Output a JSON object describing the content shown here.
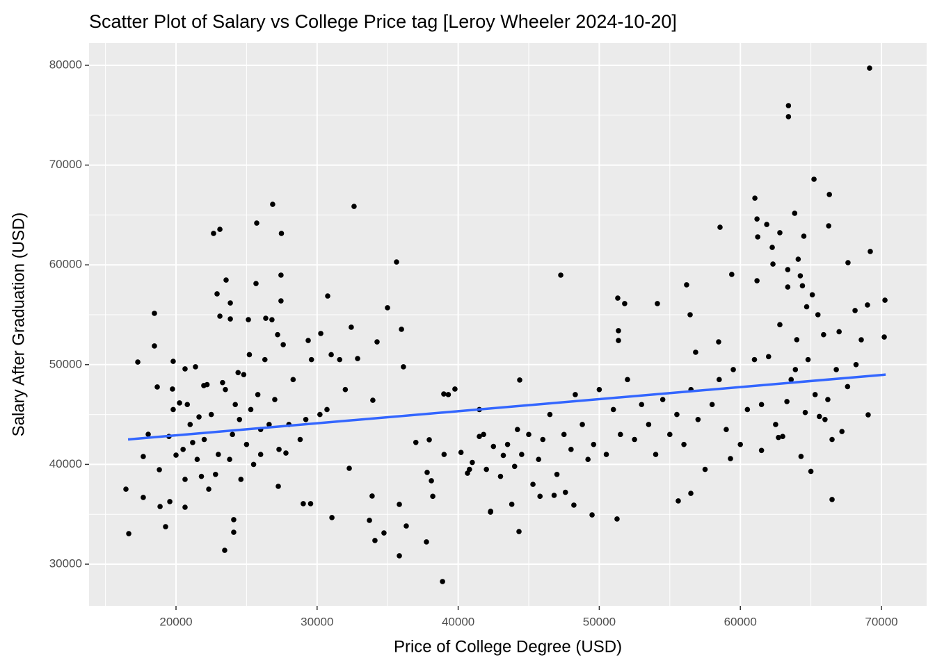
{
  "chart_data": {
    "type": "scatter",
    "title": "Scatter Plot of Salary vs College Price tag [Leroy Wheeler 2024-10-20]",
    "x_label": "Price of College Degree (USD)",
    "y_label": "Salary After Graduation (USD)",
    "xlim": [
      13836,
      73205
    ],
    "ylim": [
      25822,
      82228
    ],
    "xticks": [
      20000,
      30000,
      40000,
      50000,
      60000,
      70000
    ],
    "yticks": [
      30000,
      40000,
      50000,
      60000,
      70000,
      80000
    ],
    "x_minor_grid": [
      15000,
      25000,
      35000,
      45000,
      55000,
      65000
    ],
    "y_minor_grid": [
      35000,
      45000,
      55000,
      65000,
      75000
    ],
    "grid": true,
    "color": "#000000",
    "x": [
      16450,
      16650,
      17290,
      17680,
      17680,
      18470,
      18470,
      18030,
      18670,
      18820,
      18870,
      19260,
      19560,
      19750,
      19800,
      20000,
      20250,
      20640,
      20640,
      20640,
      21180,
      21380,
      21630,
      21970,
      22320,
      22660,
      23110,
      22910,
      23110,
      23450,
      23550,
      23850,
      23850,
      24090,
      24090,
      25720,
      25670,
      25130,
      26360,
      26850,
      27470,
      27440,
      27440,
      27250,
      27790,
      29020,
      29540,
      29370,
      30260,
      30750,
      31050,
      32620,
      32280,
      32420,
      32870,
      33950,
      33900,
      33710,
      34100,
      34250,
      34740,
      34990,
      35630,
      35830,
      35830,
      35980,
      36120,
      36320,
      37750,
      37950,
      38100,
      38890,
      38980,
      39770,
      40660,
      44310,
      42290,
      44360,
      47270,
      48200,
      49490,
      51260,
      51310,
      51800,
      51360,
      51360,
      54120,
      55600,
      56190,
      56440,
      56490,
      56830,
      58560,
      58460,
      59390,
      59300,
      61030,
      61180,
      61230,
      61180,
      61870,
      62260,
      62310,
      62800,
      63360,
      63360,
      63410,
      63410,
      63850,
      64100,
      64250,
      64500,
      65220,
      66260,
      66310,
      66500,
      69160,
      69210,
      69010,
      69060,
      70250,
      70200,
      68130,
      67630,
      68570,
      21000,
      21500,
      22000,
      22500,
      23000,
      23500,
      24000,
      24200,
      24500,
      24800,
      25000,
      25300,
      25500,
      25800,
      26000,
      26300,
      26600,
      27000,
      27300,
      27600,
      28000,
      28300,
      28800,
      29200,
      29600,
      30200,
      30700,
      31000,
      31600,
      32000,
      22800,
      23800,
      24600,
      26000,
      20500,
      19500,
      21800,
      23300,
      24400,
      25200,
      26800,
      27200,
      22200,
      20800,
      19800,
      37000,
      37800,
      38200,
      39000,
      40200,
      41000,
      41500,
      42000,
      42500,
      43000,
      43500,
      44000,
      44500,
      45000,
      45300,
      45700,
      46000,
      46500,
      47000,
      47500,
      48000,
      48300,
      48800,
      49200,
      49600,
      50000,
      50500,
      51000,
      51500,
      52000,
      52500,
      53000,
      53500,
      54000,
      54500,
      55000,
      55500,
      56000,
      56500,
      57000,
      57500,
      58000,
      58500,
      59000,
      59500,
      60000,
      60500,
      41500,
      42300,
      43800,
      45800,
      46800,
      47600,
      44200,
      40800,
      39300,
      41800,
      43200,
      61000,
      61500,
      62000,
      62500,
      63000,
      63300,
      63600,
      64000,
      64300,
      64600,
      64800,
      65000,
      65300,
      65600,
      65900,
      66200,
      66500,
      66800,
      67000,
      67200,
      67600,
      68200,
      64700,
      65500,
      62800,
      63900,
      66000,
      61500,
      62700,
      64400,
      65100
    ],
    "values": [
      37520,
      33060,
      50260,
      40790,
      36690,
      55140,
      51870,
      43020,
      47760,
      39470,
      35780,
      33760,
      36270,
      47550,
      50330,
      40930,
      46160,
      49570,
      38500,
      35710,
      42190,
      49780,
      44760,
      47900,
      37520,
      63150,
      63560,
      57090,
      54860,
      31390,
      58480,
      56180,
      54580,
      34460,
      33200,
      64190,
      58130,
      54510,
      54650,
      66070,
      63150,
      58970,
      56390,
      37800,
      41140,
      36060,
      36060,
      52420,
      53120,
      56880,
      34670,
      65860,
      39610,
      53750,
      50610,
      46430,
      36830,
      34390,
      32370,
      52280,
      33130,
      55700,
      60290,
      35990,
      30840,
      53540,
      49780,
      33830,
      32230,
      42470,
      38360,
      28260,
      47060,
      47550,
      39120,
      33270,
      35220,
      48460,
      58970,
      35920,
      34940,
      34530,
      56670,
      56120,
      53400,
      52420,
      56120,
      36340,
      58000,
      55000,
      37100,
      51240,
      63770,
      52280,
      59040,
      40580,
      66690,
      64600,
      62800,
      58410,
      64050,
      61750,
      60080,
      63220,
      59520,
      57780,
      75960,
      74850,
      65170,
      60570,
      58900,
      62870,
      68580,
      63910,
      67050,
      36480,
      79720,
      61340,
      55980,
      44970,
      56460,
      52770,
      55420,
      60220,
      52490,
      44000,
      40500,
      42500,
      45000,
      41000,
      47500,
      43000,
      46000,
      44500,
      49000,
      42000,
      45500,
      40000,
      47000,
      43500,
      50500,
      44000,
      46500,
      41500,
      52000,
      44000,
      48500,
      42500,
      44500,
      50500,
      45000,
      45500,
      51000,
      50500,
      47500,
      39000,
      40500,
      38500,
      41000,
      41500,
      42800,
      38800,
      48200,
      49200,
      51000,
      54500,
      53000,
      48000,
      46000,
      45500,
      42200,
      39200,
      36800,
      41000,
      41200,
      40200,
      42800,
      39500,
      41800,
      38800,
      42000,
      39800,
      41000,
      43000,
      38000,
      40500,
      42500,
      45000,
      39000,
      43000,
      41500,
      47000,
      44000,
      40500,
      42000,
      47500,
      41000,
      45500,
      43000,
      48500,
      42500,
      46000,
      44000,
      41000,
      46500,
      43000,
      45000,
      42000,
      47500,
      44500,
      39500,
      46000,
      48500,
      43500,
      49500,
      42000,
      45500,
      45500,
      35300,
      36000,
      36800,
      36900,
      37200,
      43500,
      39500,
      47000,
      43000,
      40900,
      50500,
      46000,
      50800,
      44000,
      42800,
      46300,
      48500,
      52500,
      40800,
      45200,
      50500,
      39300,
      47000,
      44800,
      53000,
      46500,
      42500,
      49500,
      53300,
      43300,
      47800,
      50000,
      55800,
      55000,
      54000,
      49500,
      44500,
      41400,
      42700,
      57900,
      57000
    ],
    "trend_line": {
      "x": [
        16600,
        70300
      ],
      "values": [
        42500,
        49000
      ],
      "color": "#3366FF"
    }
  }
}
